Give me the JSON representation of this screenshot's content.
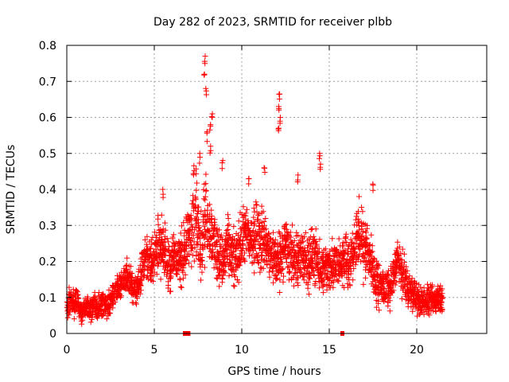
{
  "chart_data": {
    "type": "scatter",
    "title": "Day 282 of 2023, SRMTID for receiver plbb",
    "xlabel": "GPS time / hours",
    "ylabel": "SRMTID / TECUs",
    "xlim": [
      0,
      24
    ],
    "ylim": [
      0,
      0.8
    ],
    "xticks": [
      0,
      5,
      10,
      15,
      20
    ],
    "xtick_labels": [
      "0",
      "5",
      "10",
      "15",
      "20"
    ],
    "yticks": [
      0,
      0.1,
      0.2,
      0.3,
      0.4,
      0.5,
      0.6,
      0.7,
      0.8
    ],
    "ytick_labels": [
      "0",
      "0.1",
      "0.2",
      "0.3",
      "0.4",
      "0.5",
      "0.6",
      "0.7",
      "0.8"
    ],
    "grid": true,
    "marker": "+",
    "color": "#ff0000",
    "gap_markers_x": [
      6.75,
      6.95,
      15.75
    ],
    "series": [
      {
        "name": "SRMTID",
        "x_start": 0.0,
        "x_step": 0.1,
        "median": [
          0.075,
          0.08,
          0.085,
          0.085,
          0.08,
          0.08,
          0.09,
          0.07,
          0.06,
          0.07,
          0.07,
          0.075,
          0.07,
          0.065,
          0.07,
          0.08,
          0.07,
          0.075,
          0.08,
          0.08,
          0.085,
          0.075,
          0.07,
          0.075,
          0.09,
          0.1,
          0.11,
          0.12,
          0.12,
          0.12,
          0.13,
          0.14,
          0.15,
          0.16,
          0.16,
          0.15,
          0.14,
          0.13,
          0.12,
          0.12,
          0.13,
          0.14,
          0.17,
          0.19,
          0.21,
          0.22,
          0.21,
          0.2,
          0.19,
          0.2,
          0.22,
          0.24,
          0.26,
          0.25,
          0.24,
          0.23,
          0.22,
          0.2,
          0.2,
          0.2,
          0.21,
          0.22,
          0.21,
          0.2,
          0.2,
          0.21,
          0.22,
          0.23,
          0.24,
          0.26,
          0.28,
          0.3,
          0.34,
          0.34,
          0.3,
          0.28,
          0.26,
          0.26,
          0.3,
          0.34,
          0.32,
          0.3,
          0.28,
          0.26,
          0.25,
          0.24,
          0.22,
          0.21,
          0.2,
          0.2,
          0.22,
          0.23,
          0.24,
          0.22,
          0.21,
          0.2,
          0.21,
          0.22,
          0.23,
          0.25,
          0.26,
          0.27,
          0.28,
          0.28,
          0.26,
          0.25,
          0.26,
          0.27,
          0.28,
          0.27,
          0.26,
          0.26,
          0.26,
          0.25,
          0.24,
          0.22,
          0.22,
          0.22,
          0.21,
          0.2,
          0.2,
          0.21,
          0.22,
          0.23,
          0.25,
          0.24,
          0.23,
          0.22,
          0.21,
          0.2,
          0.21,
          0.21,
          0.2,
          0.2,
          0.21,
          0.21,
          0.21,
          0.2,
          0.2,
          0.21,
          0.22,
          0.21,
          0.2,
          0.19,
          0.18,
          0.18,
          0.17,
          0.18,
          0.19,
          0.19,
          0.18,
          0.18,
          0.18,
          0.19,
          0.19,
          0.19,
          0.2,
          0.2,
          0.21,
          0.21,
          0.2,
          0.2,
          0.21,
          0.22,
          0.24,
          0.26,
          0.27,
          0.27,
          0.25,
          0.24,
          0.24,
          0.25,
          0.22,
          0.2,
          0.19,
          0.17,
          0.15,
          0.14,
          0.13,
          0.13,
          0.13,
          0.12,
          0.12,
          0.12,
          0.13,
          0.14,
          0.16,
          0.18,
          0.2,
          0.2,
          0.19,
          0.17,
          0.15,
          0.14,
          0.13,
          0.12,
          0.12,
          0.11,
          0.1,
          0.1,
          0.09,
          0.09,
          0.09,
          0.09,
          0.09,
          0.09,
          0.09,
          0.09,
          0.09,
          0.09,
          0.09,
          0.1,
          0.1,
          0.1,
          0.1
        ],
        "spread": [
          0.03,
          0.035,
          0.035,
          0.035,
          0.035,
          0.03,
          0.03,
          0.03,
          0.03,
          0.03,
          0.03,
          0.03,
          0.03,
          0.03,
          0.03,
          0.03,
          0.03,
          0.03,
          0.03,
          0.03,
          0.03,
          0.03,
          0.03,
          0.03,
          0.03,
          0.03,
          0.03,
          0.03,
          0.035,
          0.035,
          0.035,
          0.035,
          0.035,
          0.04,
          0.04,
          0.04,
          0.035,
          0.035,
          0.035,
          0.035,
          0.035,
          0.04,
          0.05,
          0.05,
          0.06,
          0.06,
          0.06,
          0.06,
          0.06,
          0.06,
          0.06,
          0.06,
          0.07,
          0.07,
          0.07,
          0.07,
          0.07,
          0.07,
          0.07,
          0.07,
          0.07,
          0.07,
          0.07,
          0.07,
          0.07,
          0.07,
          0.07,
          0.07,
          0.07,
          0.07,
          0.07,
          0.1,
          0.15,
          0.15,
          0.1,
          0.08,
          0.08,
          0.08,
          0.1,
          0.1,
          0.1,
          0.08,
          0.08,
          0.08,
          0.08,
          0.07,
          0.07,
          0.07,
          0.07,
          0.07,
          0.07,
          0.07,
          0.07,
          0.07,
          0.07,
          0.07,
          0.07,
          0.07,
          0.07,
          0.07,
          0.07,
          0.07,
          0.07,
          0.07,
          0.07,
          0.07,
          0.07,
          0.08,
          0.08,
          0.08,
          0.08,
          0.08,
          0.07,
          0.07,
          0.07,
          0.07,
          0.07,
          0.07,
          0.07,
          0.07,
          0.07,
          0.07,
          0.07,
          0.07,
          0.07,
          0.07,
          0.07,
          0.07,
          0.07,
          0.07,
          0.07,
          0.07,
          0.07,
          0.07,
          0.07,
          0.07,
          0.07,
          0.07,
          0.07,
          0.07,
          0.07,
          0.07,
          0.07,
          0.06,
          0.06,
          0.06,
          0.06,
          0.06,
          0.06,
          0.06,
          0.06,
          0.06,
          0.06,
          0.06,
          0.06,
          0.06,
          0.06,
          0.06,
          0.06,
          0.06,
          0.06,
          0.06,
          0.06,
          0.06,
          0.07,
          0.07,
          0.07,
          0.08,
          0.08,
          0.08,
          0.07,
          0.07,
          0.07,
          0.07,
          0.06,
          0.05,
          0.05,
          0.05,
          0.05,
          0.045,
          0.045,
          0.045,
          0.045,
          0.045,
          0.045,
          0.045,
          0.045,
          0.045,
          0.05,
          0.05,
          0.05,
          0.05,
          0.05,
          0.05,
          0.05,
          0.05,
          0.045,
          0.045,
          0.04,
          0.04,
          0.04,
          0.04,
          0.035,
          0.035,
          0.035,
          0.035,
          0.035,
          0.035,
          0.035,
          0.035,
          0.035,
          0.035,
          0.04,
          0.04,
          0.04,
          0.04
        ],
        "peaks": [
          {
            "x": 7.9,
            "y": 0.77
          },
          {
            "x": 7.85,
            "y": 0.72
          },
          {
            "x": 7.95,
            "y": 0.68
          },
          {
            "x": 8.3,
            "y": 0.61
          },
          {
            "x": 8.2,
            "y": 0.58
          },
          {
            "x": 8.0,
            "y": 0.56
          },
          {
            "x": 7.6,
            "y": 0.5
          },
          {
            "x": 8.2,
            "y": 0.52
          },
          {
            "x": 12.15,
            "y": 0.665
          },
          {
            "x": 12.1,
            "y": 0.63
          },
          {
            "x": 12.2,
            "y": 0.6
          },
          {
            "x": 12.1,
            "y": 0.57
          },
          {
            "x": 14.45,
            "y": 0.5
          },
          {
            "x": 14.5,
            "y": 0.47
          },
          {
            "x": 8.9,
            "y": 0.48
          },
          {
            "x": 11.3,
            "y": 0.46
          },
          {
            "x": 13.2,
            "y": 0.44
          },
          {
            "x": 17.5,
            "y": 0.415
          },
          {
            "x": 5.5,
            "y": 0.4
          },
          {
            "x": 10.4,
            "y": 0.43
          }
        ]
      }
    ]
  }
}
